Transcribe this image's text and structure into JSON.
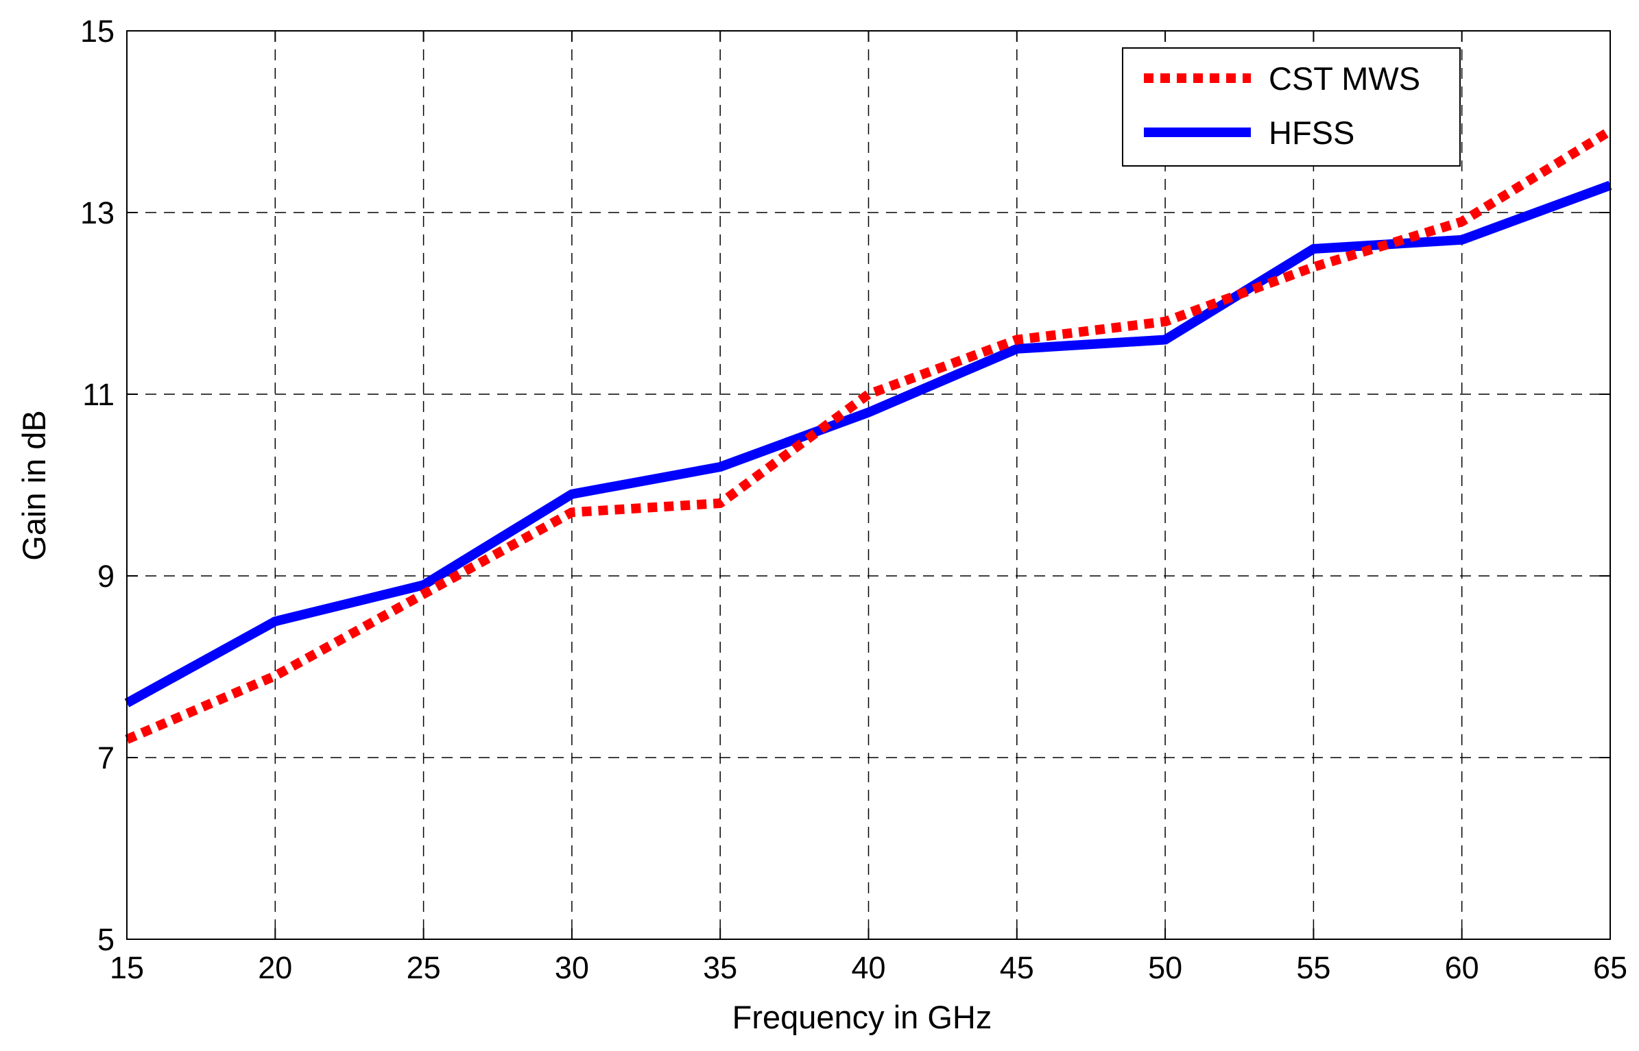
{
  "chart_data": {
    "type": "line",
    "title": "",
    "xlabel": "Frequency in GHz",
    "ylabel": "Gain in dB",
    "xlim": [
      15,
      65
    ],
    "ylim": [
      5,
      15
    ],
    "xticks": [
      15,
      20,
      25,
      30,
      35,
      40,
      45,
      50,
      55,
      60,
      65
    ],
    "yticks": [
      5,
      7,
      9,
      11,
      13,
      15
    ],
    "grid": true,
    "legend_position": "top-right",
    "x": [
      15,
      20,
      25,
      30,
      35,
      40,
      45,
      50,
      55,
      60,
      65
    ],
    "series": [
      {
        "name": "CST MWS",
        "color": "#ff0000",
        "style": "dotted",
        "values": [
          7.2,
          7.9,
          8.8,
          9.7,
          9.8,
          11.0,
          11.6,
          11.8,
          12.4,
          12.9,
          13.9
        ]
      },
      {
        "name": "HFSS",
        "color": "#0000ff",
        "style": "solid",
        "values": [
          7.6,
          8.5,
          8.9,
          9.9,
          10.2,
          10.8,
          11.5,
          11.6,
          12.6,
          12.7,
          13.3
        ]
      }
    ]
  }
}
